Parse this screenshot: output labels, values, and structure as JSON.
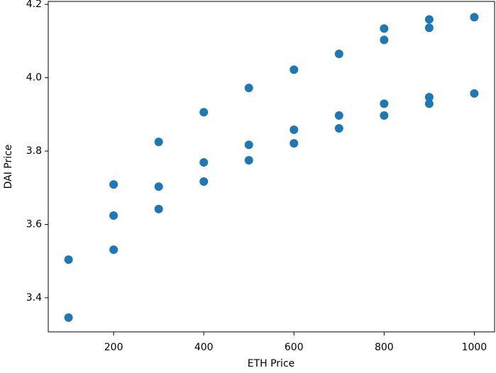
{
  "chart_data": {
    "type": "scatter",
    "x_label": "ETH Price",
    "y_label": "DAI Price",
    "x": [
      100,
      100,
      200,
      200,
      200,
      300,
      300,
      300,
      400,
      400,
      400,
      500,
      500,
      500,
      600,
      600,
      600,
      700,
      700,
      700,
      800,
      800,
      800,
      800,
      900,
      900,
      900,
      900,
      1000,
      1000
    ],
    "values": [
      3.504,
      3.346,
      3.709,
      3.624,
      3.531,
      3.825,
      3.703,
      3.642,
      3.906,
      3.769,
      3.717,
      3.972,
      3.817,
      3.775,
      4.022,
      3.858,
      3.821,
      4.065,
      3.897,
      3.862,
      4.134,
      4.103,
      3.929,
      3.897,
      4.159,
      4.136,
      3.947,
      3.929,
      4.165,
      3.957
    ],
    "color": "#1f77b4",
    "xlim": [
      55,
      1045
    ],
    "xticks": [
      200,
      400,
      600,
      800,
      1000
    ],
    "ylim": [
      3.307,
      4.208
    ],
    "yticks": [
      3.4,
      3.6,
      3.8,
      {
        "value": 4.0,
        "label": "4.0"
      },
      4.2
    ]
  }
}
